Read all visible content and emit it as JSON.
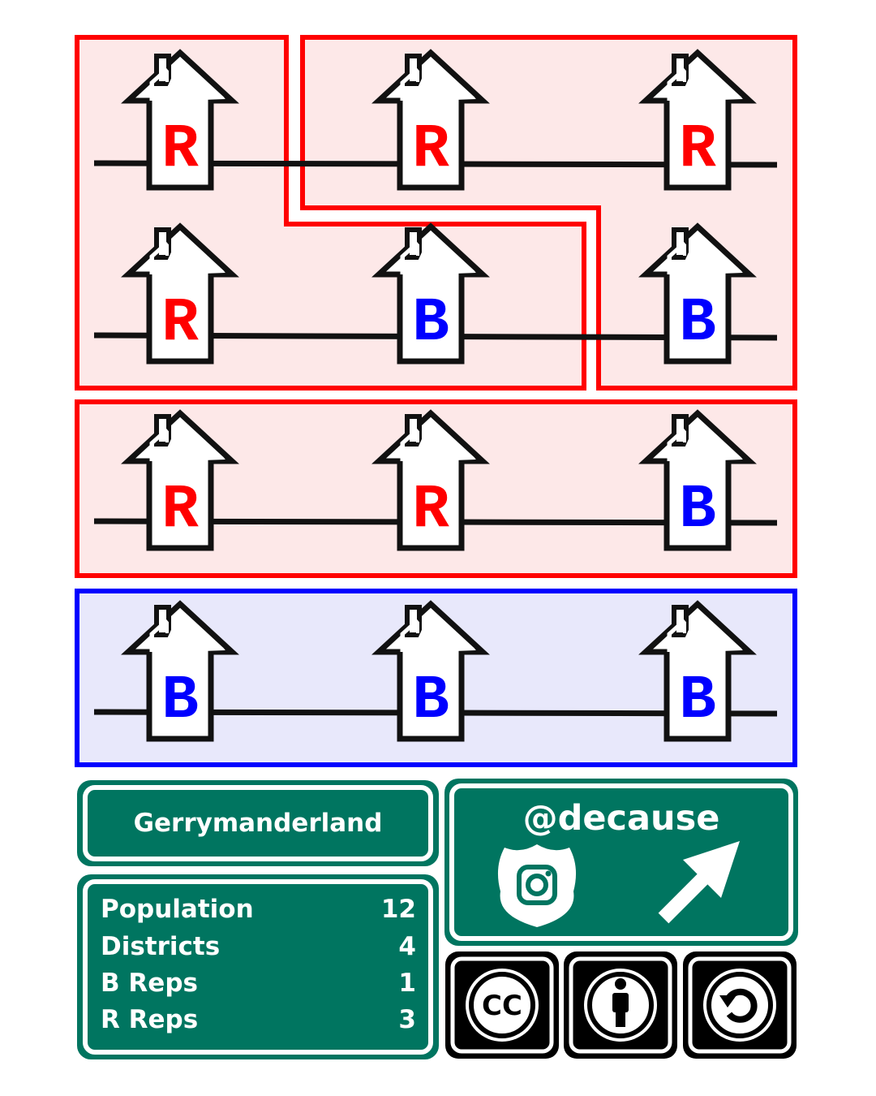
{
  "map": {
    "colors": {
      "red": "#ff0000",
      "blue": "#0000ff",
      "red_fill": "#fde8e8",
      "blue_fill": "#e8e8fb",
      "road": "#111111"
    },
    "rows": [
      {
        "houses": [
          "R",
          "R",
          "R"
        ]
      },
      {
        "houses": [
          "R",
          "B",
          "B"
        ]
      },
      {
        "houses": [
          "R",
          "R",
          "B"
        ]
      },
      {
        "houses": [
          "B",
          "B",
          "B"
        ]
      }
    ],
    "districts": [
      {
        "name": "district-1",
        "party": "R"
      },
      {
        "name": "district-2",
        "party": "R"
      },
      {
        "name": "district-3",
        "party": "R"
      },
      {
        "name": "district-4",
        "party": "B"
      }
    ]
  },
  "sign": {
    "title": "Gerrymanderland",
    "stats": [
      {
        "label": "Population",
        "value": "12"
      },
      {
        "label": "Districts",
        "value": "4"
      },
      {
        "label": "B Reps",
        "value": "1"
      },
      {
        "label": "R Reps",
        "value": "3"
      }
    ],
    "handle": "@decause",
    "cc_label": "CC",
    "colors": {
      "green": "#007560",
      "black": "#000000"
    }
  },
  "icons": [
    "instagram-shield-icon",
    "arrow-up-right-icon",
    "cc-icon",
    "by-attribution-icon",
    "sharealike-icon"
  ]
}
